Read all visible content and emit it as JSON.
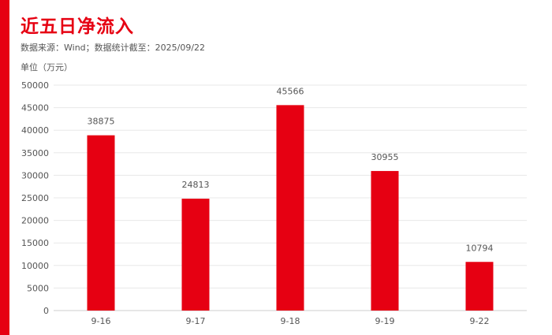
{
  "header": {
    "title": "近五日净流入",
    "source": "数据来源：Wind；数据统计截至：2025/09/22",
    "unit": "单位（万元）"
  },
  "colors": {
    "accent": "#e60012",
    "bar": "#e60012",
    "title": "#e60012",
    "grid": "#e8e8e8",
    "axis": "#cccccc"
  },
  "chart_data": {
    "type": "bar",
    "title": "近五日净流入",
    "ylabel": "单位（万元）",
    "xlabel": "",
    "categories": [
      "9-16",
      "9-17",
      "9-18",
      "9-19",
      "9-22"
    ],
    "values": [
      38875,
      24813,
      45566,
      30955,
      10794
    ],
    "ylim": [
      0,
      50000
    ],
    "yticks": [
      0,
      5000,
      10000,
      15000,
      20000,
      25000,
      30000,
      35000,
      40000,
      45000,
      50000
    ],
    "data_labels": [
      "38875",
      "24813",
      "45566",
      "30955",
      "10794"
    ],
    "grid": true,
    "legend": "none"
  }
}
